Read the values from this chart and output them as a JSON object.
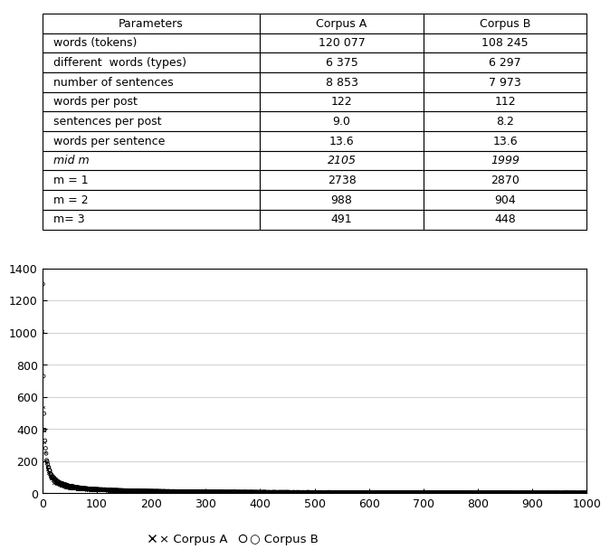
{
  "table": {
    "headers": [
      "Parameters",
      "Corpus A",
      "Corpus B"
    ],
    "rows": [
      [
        "words (tokens)",
        "120 077",
        "108 245"
      ],
      [
        "different  words (types)",
        "6 375",
        "6 297"
      ],
      [
        "number of sentences",
        "8 853",
        "7 973"
      ],
      [
        "words per post",
        "122",
        "112"
      ],
      [
        "sentences per post",
        "9.0",
        "8.2"
      ],
      [
        "words per sentence",
        "13.6",
        "13.6"
      ],
      [
        "mid m",
        "2105",
        "1999"
      ],
      [
        "m = 1",
        "2738",
        "2870"
      ],
      [
        "m = 2",
        "988",
        "904"
      ],
      [
        "m= 3",
        "491",
        "448"
      ]
    ],
    "italic_row": 6
  },
  "plot": {
    "xlim": [
      0,
      1000
    ],
    "ylim": [
      0,
      1400
    ],
    "xticks": [
      0,
      100,
      200,
      300,
      400,
      500,
      600,
      700,
      800,
      900,
      1000
    ],
    "yticks": [
      0,
      200,
      400,
      600,
      800,
      1000,
      1200,
      1400
    ],
    "legend_A": "× Corpus A",
    "legend_B": "○ Corpus B",
    "zipf_n": 1000,
    "zipf_scale_A": 960,
    "zipf_exponent_A": 0.85,
    "zipf_scale_B": 1280,
    "zipf_exponent_B": 0.85,
    "grid_color": "#d0d0d0",
    "marker_size_A": 4,
    "marker_size_B": 8
  }
}
